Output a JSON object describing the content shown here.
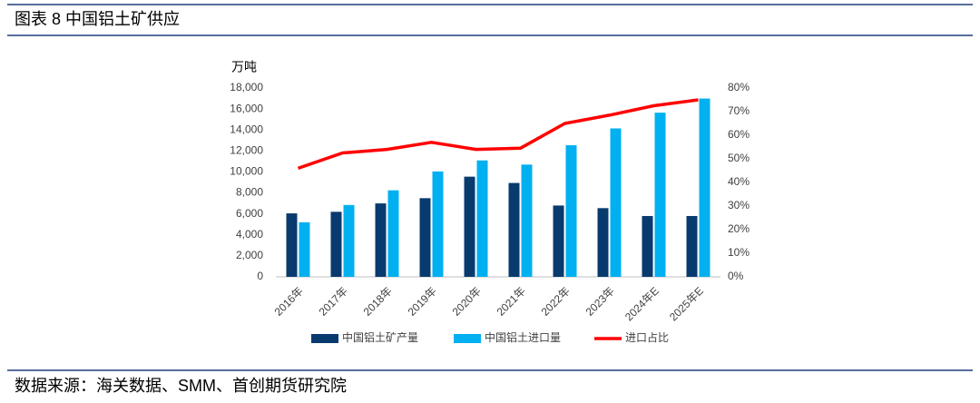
{
  "chart_data": {
    "type": "bar",
    "title": "图表 8 中国铝土矿供应",
    "y_label": "万吨",
    "source": "数据来源：海关数据、SMM、首创期货研究院",
    "categories": [
      "2016年",
      "2017年",
      "2018年",
      "2019年",
      "2020年",
      "2021年",
      "2022年",
      "2023年",
      "2024年E",
      "2025年E"
    ],
    "series": [
      {
        "name": "中国铝土矿产量",
        "color": "#083a6e",
        "type": "bar",
        "values": [
          6050,
          6200,
          7000,
          7500,
          9550,
          8950,
          6800,
          6550,
          5800,
          5800
        ]
      },
      {
        "name": "中国铝土进口量",
        "color": "#00b0f0",
        "type": "bar",
        "values": [
          5200,
          6850,
          8250,
          10050,
          11100,
          10700,
          12550,
          14150,
          15650,
          17000
        ]
      },
      {
        "name": "进口占比",
        "color": "#ff0000",
        "type": "line",
        "axis": "y2",
        "values": [
          46,
          52.5,
          54,
          57,
          54,
          54.5,
          65,
          68.5,
          72.5,
          75
        ]
      }
    ],
    "ylim": [
      0,
      18000
    ],
    "yticks": [
      0,
      {
        "value": 2000,
        "label": "2,000"
      },
      {
        "value": 4000,
        "label": "4,000"
      },
      {
        "value": 6000,
        "label": "6,000"
      },
      {
        "value": 8000,
        "label": "8,000"
      },
      {
        "value": 10000,
        "label": "10,000"
      },
      {
        "value": 12000,
        "label": "12,000"
      },
      {
        "value": 14000,
        "label": "14,000"
      },
      {
        "value": 16000,
        "label": "16,000"
      },
      {
        "value": 18000,
        "label": "18,000"
      }
    ],
    "y2lim": [
      0,
      80
    ],
    "y2ticks": [
      {
        "value": 0,
        "label": "0%"
      },
      {
        "value": 10,
        "label": "10%"
      },
      {
        "value": 20,
        "label": "20%"
      },
      {
        "value": 30,
        "label": "30%"
      },
      {
        "value": 40,
        "label": "40%"
      },
      {
        "value": 50,
        "label": "50%"
      },
      {
        "value": 60,
        "label": "60%"
      },
      {
        "value": 70,
        "label": "70%"
      },
      {
        "value": 80,
        "label": "80%"
      }
    ],
    "grid": false,
    "legend": "bottom"
  }
}
